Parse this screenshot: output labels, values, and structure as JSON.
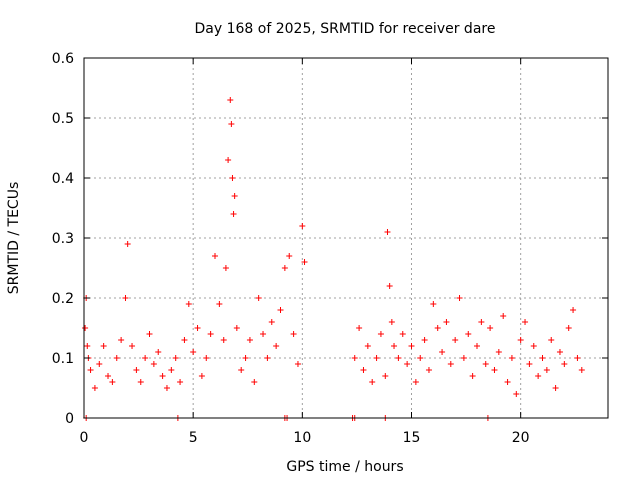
{
  "chart_data": {
    "type": "scatter",
    "title": "Day 168 of 2025, SRMTID for receiver dare",
    "xlabel": "GPS time / hours",
    "ylabel": "SRMTID / TECUs",
    "xlim": [
      0,
      24
    ],
    "ylim": [
      0,
      0.6
    ],
    "x_ticks": [
      0,
      5,
      10,
      15,
      20
    ],
    "y_ticks": [
      0,
      0.1,
      0.2,
      0.3,
      0.4,
      0.5,
      0.6
    ],
    "x_tick_labels": [
      "0",
      "5",
      "10",
      "15",
      "20"
    ],
    "y_tick_labels": [
      "0",
      "0.1",
      "0.2",
      "0.3",
      "0.4",
      "0.5",
      "0.6"
    ],
    "grid": true,
    "marker": "+",
    "color": "#ff0000",
    "series": [
      {
        "name": "SRMTID",
        "x": [
          0.05,
          0.1,
          0.15,
          0.2,
          0.3,
          0.5,
          0.7,
          0.9,
          1.1,
          1.3,
          1.5,
          1.7,
          1.9,
          2.0,
          2.2,
          2.4,
          2.6,
          2.8,
          3.0,
          3.2,
          3.4,
          3.6,
          3.8,
          4.0,
          4.2,
          4.4,
          4.6,
          4.8,
          5.0,
          5.2,
          5.4,
          5.6,
          5.8,
          6.0,
          6.2,
          6.4,
          6.5,
          6.6,
          6.7,
          6.75,
          6.8,
          6.85,
          6.9,
          7.0,
          7.2,
          7.4,
          7.6,
          7.8,
          8.0,
          8.2,
          8.4,
          8.6,
          8.8,
          9.0,
          9.2,
          9.4,
          9.6,
          9.8,
          10.0,
          10.1,
          12.4,
          12.6,
          12.8,
          13.0,
          13.2,
          13.4,
          13.6,
          13.8,
          13.9,
          14.0,
          14.1,
          14.2,
          14.4,
          14.6,
          14.8,
          15.0,
          15.2,
          15.4,
          15.6,
          15.8,
          16.0,
          16.2,
          16.4,
          16.6,
          16.8,
          17.0,
          17.2,
          17.4,
          17.6,
          17.8,
          18.0,
          18.2,
          18.4,
          18.6,
          18.8,
          19.0,
          19.2,
          19.4,
          19.6,
          19.8,
          20.0,
          20.2,
          20.4,
          20.6,
          20.8,
          21.0,
          21.2,
          21.4,
          21.6,
          21.8,
          22.0,
          22.2,
          22.4,
          22.6,
          22.8
        ],
        "y": [
          0.15,
          0.2,
          0.12,
          0.1,
          0.08,
          0.05,
          0.09,
          0.12,
          0.07,
          0.06,
          0.1,
          0.13,
          0.2,
          0.29,
          0.12,
          0.08,
          0.06,
          0.1,
          0.14,
          0.09,
          0.11,
          0.07,
          0.05,
          0.08,
          0.1,
          0.06,
          0.13,
          0.19,
          0.11,
          0.15,
          0.07,
          0.1,
          0.14,
          0.27,
          0.19,
          0.13,
          0.25,
          0.43,
          0.53,
          0.49,
          0.4,
          0.34,
          0.37,
          0.15,
          0.08,
          0.1,
          0.13,
          0.06,
          0.2,
          0.14,
          0.1,
          0.16,
          0.12,
          0.18,
          0.25,
          0.27,
          0.14,
          0.09,
          0.32,
          0.26,
          0.1,
          0.15,
          0.08,
          0.12,
          0.06,
          0.1,
          0.14,
          0.07,
          0.31,
          0.22,
          0.16,
          0.12,
          0.1,
          0.14,
          0.09,
          0.12,
          0.06,
          0.1,
          0.13,
          0.08,
          0.19,
          0.15,
          0.11,
          0.16,
          0.09,
          0.13,
          0.2,
          0.1,
          0.14,
          0.07,
          0.12,
          0.16,
          0.09,
          0.15,
          0.08,
          0.11,
          0.17,
          0.06,
          0.1,
          0.04,
          0.13,
          0.16,
          0.09,
          0.12,
          0.07,
          0.1,
          0.08,
          0.13,
          0.05,
          0.11,
          0.09,
          0.15,
          0.18,
          0.1,
          0.08
        ],
        "zeros_x": [
          0.1,
          4.3,
          9.2,
          9.3,
          12.3,
          12.4,
          13.8,
          18.5
        ]
      }
    ]
  }
}
